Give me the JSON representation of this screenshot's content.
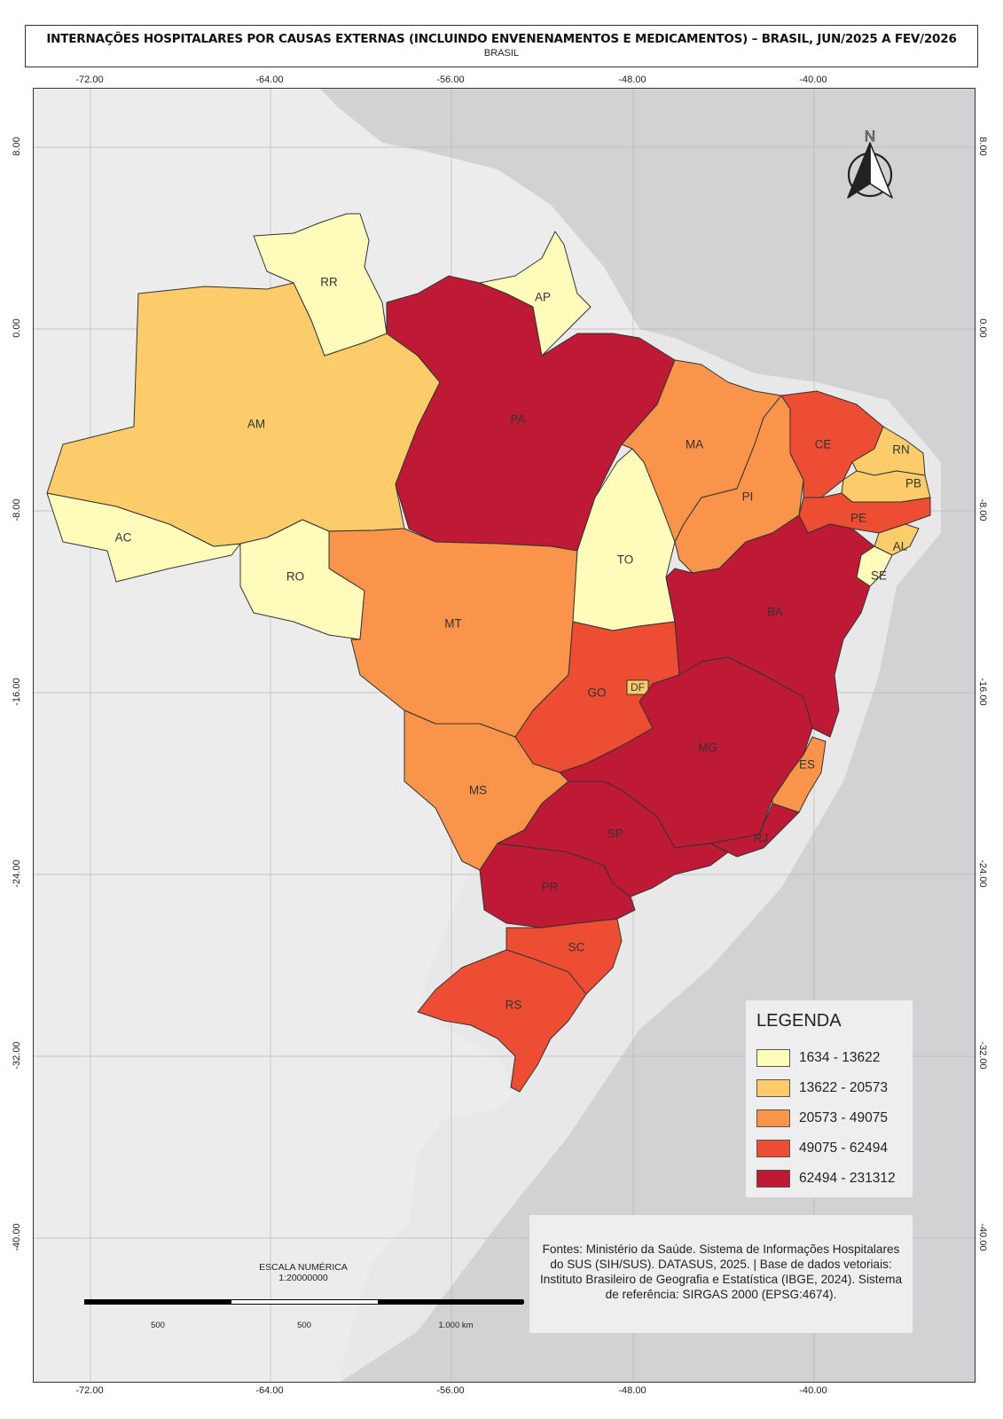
{
  "header": {
    "title": "INTERNAÇÕES HOSPITALARES POR CAUSAS EXTERNAS (INCLUINDO ENVENENAMENTOS E MEDICAMENTOS) – BRASIL, JUN/2025 A FEV/2026",
    "subtitle": "BRASIL"
  },
  "coordinates": {
    "longitudes": [
      "-72.00",
      "-64.00",
      "-56.00",
      "-48.00",
      "-40.00"
    ],
    "latitudes": [
      "8.00",
      "0.00",
      "-8.00",
      "-16.00",
      "-24.00",
      "-32.00",
      "-40.00"
    ]
  },
  "states": [
    {
      "uf": "AC",
      "class": 0
    },
    {
      "uf": "AM",
      "class": 1
    },
    {
      "uf": "RR",
      "class": 0
    },
    {
      "uf": "RO",
      "class": 0
    },
    {
      "uf": "PA",
      "class": 4
    },
    {
      "uf": "AP",
      "class": 0
    },
    {
      "uf": "MT",
      "class": 2
    },
    {
      "uf": "TO",
      "class": 0
    },
    {
      "uf": "MA",
      "class": 2
    },
    {
      "uf": "PI",
      "class": 2
    },
    {
      "uf": "CE",
      "class": 3
    },
    {
      "uf": "RN",
      "class": 1
    },
    {
      "uf": "PB",
      "class": 1
    },
    {
      "uf": "PE",
      "class": 3
    },
    {
      "uf": "AL",
      "class": 1
    },
    {
      "uf": "SE",
      "class": 0
    },
    {
      "uf": "BA",
      "class": 4
    },
    {
      "uf": "GO",
      "class": 3
    },
    {
      "uf": "DF",
      "class": 1
    },
    {
      "uf": "MG",
      "class": 4
    },
    {
      "uf": "ES",
      "class": 2
    },
    {
      "uf": "MS",
      "class": 2
    },
    {
      "uf": "SP",
      "class": 4
    },
    {
      "uf": "RJ",
      "class": 4
    },
    {
      "uf": "PR",
      "class": 4
    },
    {
      "uf": "SC",
      "class": 3
    },
    {
      "uf": "RS",
      "class": 3
    }
  ],
  "legend": {
    "title": "LEGENDA",
    "items": [
      {
        "label": "1634 - 13622",
        "color": "#fffcbb"
      },
      {
        "label": "13622 - 20573",
        "color": "#fdcc6a"
      },
      {
        "label": "20573 - 49075",
        "color": "#f9944a"
      },
      {
        "label": "49075 - 62494",
        "color": "#ec4d33"
      },
      {
        "label": "62494 - 231312",
        "color": "#be1a35"
      }
    ]
  },
  "north_arrow": {
    "letter": "N"
  },
  "scale": {
    "title_line1": "ESCALA NUMÉRICA",
    "title_line2": "1:20000000",
    "labels": [
      "500",
      "500",
      "1.000 km"
    ]
  },
  "sources": "Fontes: Ministério da Saúde. Sistema de Informações Hospitalares do SUS (SIH/SUS). DATASUS, 2025. | Base de dados vetoriais: Instituto Brasileiro de Geografia e Estatística (IBGE, 2024). Sistema de referência: SIRGAS 2000 (EPSG:4674)."
}
